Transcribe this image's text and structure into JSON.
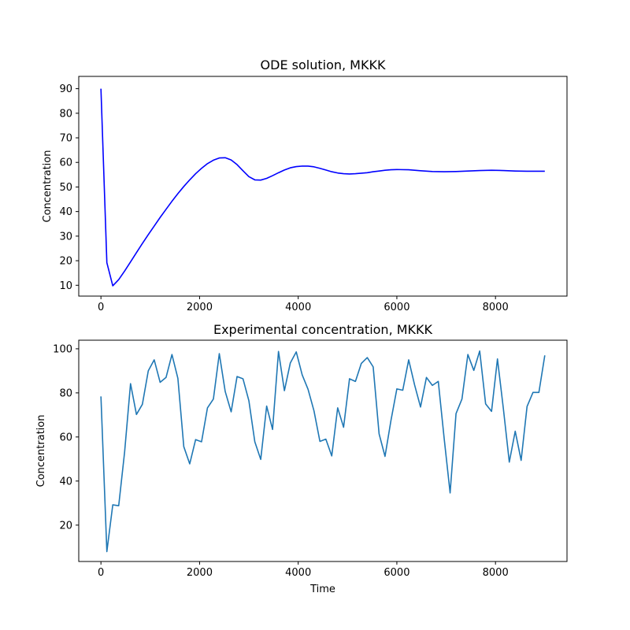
{
  "chart_data": [
    {
      "type": "line",
      "title": "ODE solution, MKKK",
      "xlabel": "",
      "ylabel": "Concentration",
      "xlim": [
        -450,
        9450
      ],
      "ylim": [
        5.6,
        95.0
      ],
      "xticks": [
        0,
        2000,
        4000,
        6000,
        8000
      ],
      "yticks": [
        10,
        20,
        30,
        40,
        50,
        60,
        70,
        80,
        90
      ],
      "grid": false,
      "series": [
        {
          "color": "#0000ff",
          "x": [
            0,
            120,
            240,
            360,
            480,
            600,
            720,
            840,
            960,
            1080,
            1200,
            1320,
            1440,
            1560,
            1680,
            1800,
            1920,
            2040,
            2160,
            2280,
            2400,
            2520,
            2640,
            2760,
            2880,
            3000,
            3120,
            3240,
            3360,
            3480,
            3600,
            3720,
            3840,
            3960,
            4080,
            4200,
            4320,
            4440,
            4560,
            4680,
            4800,
            4920,
            5040,
            5160,
            5280,
            5400,
            5520,
            5640,
            5760,
            5880,
            6000,
            6240,
            6480,
            6720,
            6960,
            7200,
            7440,
            7680,
            7920,
            8160,
            8400,
            8640,
            8880,
            9000
          ],
          "values": [
            90,
            19.2,
            9.8,
            12.3,
            15.8,
            19.5,
            23.3,
            27.0,
            30.6,
            34.1,
            37.6,
            40.9,
            44.2,
            47.3,
            50.2,
            52.9,
            55.4,
            57.6,
            59.5,
            60.9,
            61.8,
            61.9,
            61.0,
            59.1,
            56.6,
            54.2,
            52.9,
            52.8,
            53.5,
            54.6,
            55.8,
            56.9,
            57.8,
            58.3,
            58.5,
            58.5,
            58.2,
            57.6,
            56.9,
            56.2,
            55.7,
            55.4,
            55.3,
            55.4,
            55.6,
            55.8,
            56.2,
            56.5,
            56.8,
            57.0,
            57.1,
            57.0,
            56.6,
            56.3,
            56.2,
            56.3,
            56.5,
            56.7,
            56.8,
            56.7,
            56.5,
            56.4,
            56.4,
            56.4
          ]
        }
      ]
    },
    {
      "type": "line",
      "title": "Experimental concentration, MKKK",
      "xlabel": "Time",
      "ylabel": "Concentration",
      "xlim": [
        -450,
        9450
      ],
      "ylim": [
        3.5,
        103.9
      ],
      "xticks": [
        0,
        2000,
        4000,
        6000,
        8000
      ],
      "yticks": [
        20,
        40,
        60,
        80,
        100
      ],
      "grid": false,
      "series": [
        {
          "color": "#1f77b4",
          "x": [
            0,
            120,
            240,
            360,
            480,
            600,
            720,
            840,
            960,
            1080,
            1200,
            1320,
            1440,
            1560,
            1680,
            1800,
            1920,
            2040,
            2160,
            2280,
            2400,
            2520,
            2640,
            2760,
            2880,
            3000,
            3120,
            3240,
            3360,
            3480,
            3600,
            3720,
            3840,
            3960,
            4080,
            4200,
            4320,
            4440,
            4560,
            4680,
            4800,
            4920,
            5040,
            5160,
            5280,
            5400,
            5520,
            5640,
            5760,
            5880,
            6000,
            6120,
            6240,
            6360,
            6480,
            6600,
            6720,
            6840,
            6960,
            7080,
            7200,
            7320,
            7440,
            7560,
            7680,
            7800,
            7920,
            8040,
            8160,
            8280,
            8400,
            8520,
            8640,
            8760,
            8880,
            9000
          ],
          "values": [
            78.4,
            8.0,
            29.2,
            28.8,
            53.2,
            84.2,
            70.2,
            74.8,
            90.0,
            95.0,
            84.8,
            87.0,
            97.4,
            86.6,
            55.6,
            47.8,
            58.8,
            57.8,
            73.2,
            77.2,
            97.8,
            80.6,
            71.4,
            87.4,
            86.4,
            76.4,
            57.8,
            49.8,
            74.0,
            63.4,
            98.8,
            81.0,
            93.6,
            98.6,
            88.2,
            81.6,
            71.8,
            58.0,
            59.0,
            51.4,
            73.2,
            64.4,
            86.4,
            85.2,
            93.4,
            96.0,
            91.8,
            61.4,
            51.2,
            67.4,
            81.8,
            81.2,
            95.0,
            83.6,
            73.6,
            87.0,
            83.4,
            85.2,
            59.2,
            34.6,
            70.6,
            77.2,
            97.4,
            90.2,
            99.0,
            75.0,
            71.6,
            95.4,
            72.8,
            48.6,
            62.6,
            49.4,
            73.8,
            80.2,
            80.2,
            97.0
          ]
        }
      ]
    }
  ]
}
